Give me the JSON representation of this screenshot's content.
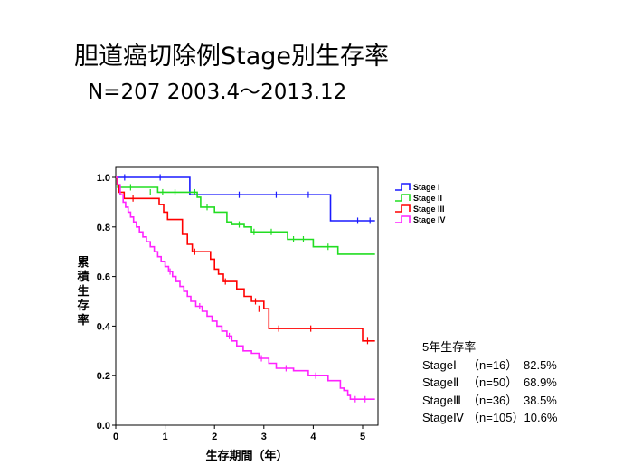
{
  "title": "胆道癌切除例Stage別生存率",
  "subtitle": "N=207  2003.4～2013.12",
  "chart_data": {
    "type": "line",
    "xlabel": "生存期間（年）",
    "ylabel": "累積生存率",
    "xlim": [
      0,
      5.25
    ],
    "ylim": [
      0,
      1.0
    ],
    "xticks": [
      "0",
      "1",
      "2",
      "3",
      "4",
      "5"
    ],
    "yticks": [
      "0.0",
      "0.2",
      "0.4",
      "0.6",
      "0.8",
      "1.0"
    ],
    "grid": false,
    "legend_position": "right",
    "series": [
      {
        "name": "Stage I",
        "color": "#1a1aff",
        "steps": [
          [
            0,
            1.0
          ],
          [
            1.5,
            0.93
          ],
          [
            4.35,
            0.825
          ],
          [
            5.25,
            0.825
          ]
        ],
        "censored": [
          [
            0.18,
            1.0
          ],
          [
            0.9,
            1.0
          ],
          [
            2.5,
            0.93
          ],
          [
            3.25,
            0.93
          ],
          [
            3.9,
            0.93
          ],
          [
            4.9,
            0.825
          ],
          [
            5.15,
            0.825
          ]
        ]
      },
      {
        "name": "Stage II",
        "color": "#22dd22",
        "steps": [
          [
            0,
            1.0
          ],
          [
            0.04,
            0.96
          ],
          [
            0.85,
            0.94
          ],
          [
            1.65,
            0.92
          ],
          [
            1.72,
            0.88
          ],
          [
            2.0,
            0.86
          ],
          [
            2.25,
            0.82
          ],
          [
            2.35,
            0.81
          ],
          [
            2.6,
            0.8
          ],
          [
            2.75,
            0.78
          ],
          [
            3.48,
            0.75
          ],
          [
            4.0,
            0.72
          ],
          [
            4.5,
            0.69
          ],
          [
            5.25,
            0.69
          ]
        ],
        "censored": [
          [
            0.3,
            0.96
          ],
          [
            0.7,
            0.94
          ],
          [
            0.95,
            0.94
          ],
          [
            1.2,
            0.94
          ],
          [
            1.6,
            0.94
          ],
          [
            1.85,
            0.88
          ],
          [
            2.5,
            0.81
          ],
          [
            2.8,
            0.78
          ],
          [
            3.15,
            0.78
          ],
          [
            3.6,
            0.75
          ],
          [
            3.8,
            0.75
          ],
          [
            4.3,
            0.72
          ]
        ]
      },
      {
        "name": "Stage III",
        "color": "#ff0000",
        "steps": [
          [
            0,
            1.0
          ],
          [
            0.03,
            0.97
          ],
          [
            0.07,
            0.94
          ],
          [
            0.17,
            0.915
          ],
          [
            0.62,
            0.915
          ],
          [
            0.88,
            0.89
          ],
          [
            0.97,
            0.86
          ],
          [
            1.05,
            0.83
          ],
          [
            1.35,
            0.77
          ],
          [
            1.45,
            0.73
          ],
          [
            1.55,
            0.7
          ],
          [
            1.92,
            0.67
          ],
          [
            2.0,
            0.63
          ],
          [
            2.08,
            0.61
          ],
          [
            2.18,
            0.58
          ],
          [
            2.45,
            0.55
          ],
          [
            2.6,
            0.52
          ],
          [
            2.75,
            0.5
          ],
          [
            3.0,
            0.47
          ],
          [
            3.1,
            0.39
          ],
          [
            5.0,
            0.34
          ],
          [
            5.25,
            0.34
          ]
        ],
        "censored": [
          [
            0.35,
            0.915
          ],
          [
            1.6,
            0.7
          ],
          [
            2.22,
            0.58
          ],
          [
            2.83,
            0.5
          ],
          [
            2.9,
            0.47
          ],
          [
            3.3,
            0.39
          ],
          [
            3.95,
            0.39
          ],
          [
            5.1,
            0.34
          ]
        ]
      },
      {
        "name": "Stage IV",
        "color": "#ff22ff",
        "steps": [
          [
            0,
            1.0
          ],
          [
            0.04,
            0.97
          ],
          [
            0.09,
            0.93
          ],
          [
            0.15,
            0.9
          ],
          [
            0.2,
            0.88
          ],
          [
            0.25,
            0.86
          ],
          [
            0.3,
            0.84
          ],
          [
            0.36,
            0.82
          ],
          [
            0.42,
            0.8
          ],
          [
            0.48,
            0.78
          ],
          [
            0.55,
            0.76
          ],
          [
            0.62,
            0.74
          ],
          [
            0.7,
            0.72
          ],
          [
            0.78,
            0.7
          ],
          [
            0.85,
            0.68
          ],
          [
            0.92,
            0.66
          ],
          [
            1.0,
            0.64
          ],
          [
            1.07,
            0.62
          ],
          [
            1.15,
            0.6
          ],
          [
            1.22,
            0.58
          ],
          [
            1.3,
            0.56
          ],
          [
            1.38,
            0.54
          ],
          [
            1.45,
            0.52
          ],
          [
            1.52,
            0.5
          ],
          [
            1.62,
            0.48
          ],
          [
            1.75,
            0.46
          ],
          [
            1.85,
            0.44
          ],
          [
            1.95,
            0.42
          ],
          [
            2.05,
            0.4
          ],
          [
            2.15,
            0.38
          ],
          [
            2.25,
            0.36
          ],
          [
            2.35,
            0.34
          ],
          [
            2.45,
            0.32
          ],
          [
            2.58,
            0.3
          ],
          [
            2.75,
            0.29
          ],
          [
            2.9,
            0.27
          ],
          [
            3.1,
            0.25
          ],
          [
            3.25,
            0.23
          ],
          [
            3.6,
            0.22
          ],
          [
            3.9,
            0.2
          ],
          [
            4.3,
            0.18
          ],
          [
            4.55,
            0.15
          ],
          [
            4.62,
            0.14
          ],
          [
            4.7,
            0.12
          ],
          [
            4.75,
            0.105
          ],
          [
            5.25,
            0.105
          ]
        ],
        "censored": [
          [
            1.1,
            0.62
          ],
          [
            1.7,
            0.48
          ],
          [
            2.3,
            0.36
          ],
          [
            2.95,
            0.27
          ],
          [
            3.45,
            0.23
          ],
          [
            4.05,
            0.2
          ],
          [
            4.85,
            0.105
          ],
          [
            5.05,
            0.105
          ]
        ]
      }
    ]
  },
  "summary": {
    "heading": "5年生存率",
    "rows": [
      {
        "stage": "StageⅠ",
        "n": "（n=16）",
        "rate": "82.5%"
      },
      {
        "stage": "StageⅡ",
        "n": "（n=50）",
        "rate": "68.9%"
      },
      {
        "stage": "StageⅢ",
        "n": "（n=36）",
        "rate": "38.5%"
      },
      {
        "stage": "StageⅣ",
        "n": "（n=105）",
        "rate": "10.6%"
      }
    ]
  }
}
